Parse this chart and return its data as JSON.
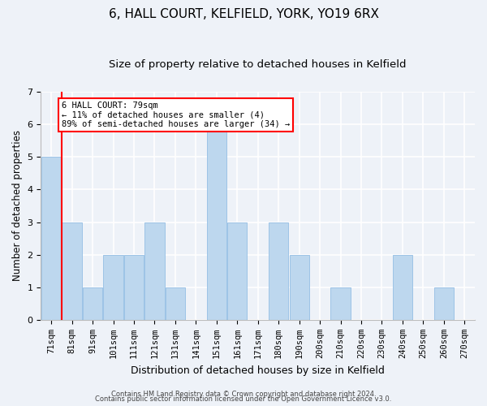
{
  "title1": "6, HALL COURT, KELFIELD, YORK, YO19 6RX",
  "title2": "Size of property relative to detached houses in Kelfield",
  "xlabel": "Distribution of detached houses by size in Kelfield",
  "ylabel": "Number of detached properties",
  "categories": [
    "71sqm",
    "81sqm",
    "91sqm",
    "101sqm",
    "111sqm",
    "121sqm",
    "131sqm",
    "141sqm",
    "151sqm",
    "161sqm",
    "171sqm",
    "180sqm",
    "190sqm",
    "200sqm",
    "210sqm",
    "220sqm",
    "230sqm",
    "240sqm",
    "250sqm",
    "260sqm",
    "270sqm"
  ],
  "values": [
    5,
    3,
    1,
    2,
    2,
    3,
    1,
    0,
    6,
    3,
    0,
    3,
    2,
    0,
    1,
    0,
    0,
    2,
    0,
    1,
    0
  ],
  "bar_color": "#BDD7EE",
  "bar_edge_color": "#9DC3E6",
  "vline_x": 0.5,
  "vline_color": "red",
  "annotation_lines": [
    "6 HALL COURT: 79sqm",
    "← 11% of detached houses are smaller (4)",
    "89% of semi-detached houses are larger (34) →"
  ],
  "annotation_box_color": "white",
  "annotation_box_edge": "red",
  "ylim": [
    0,
    7
  ],
  "yticks": [
    0,
    1,
    2,
    3,
    4,
    5,
    6,
    7
  ],
  "footer1": "Contains HM Land Registry data © Crown copyright and database right 2024.",
  "footer2": "Contains public sector information licensed under the Open Government Licence v3.0.",
  "background_color": "#EEF2F8",
  "grid_color": "white",
  "title1_fontsize": 11,
  "title2_fontsize": 9.5,
  "tick_fontsize": 7.5,
  "ylabel_fontsize": 8.5,
  "xlabel_fontsize": 9,
  "footer_fontsize": 6,
  "annotation_fontsize": 7.5
}
